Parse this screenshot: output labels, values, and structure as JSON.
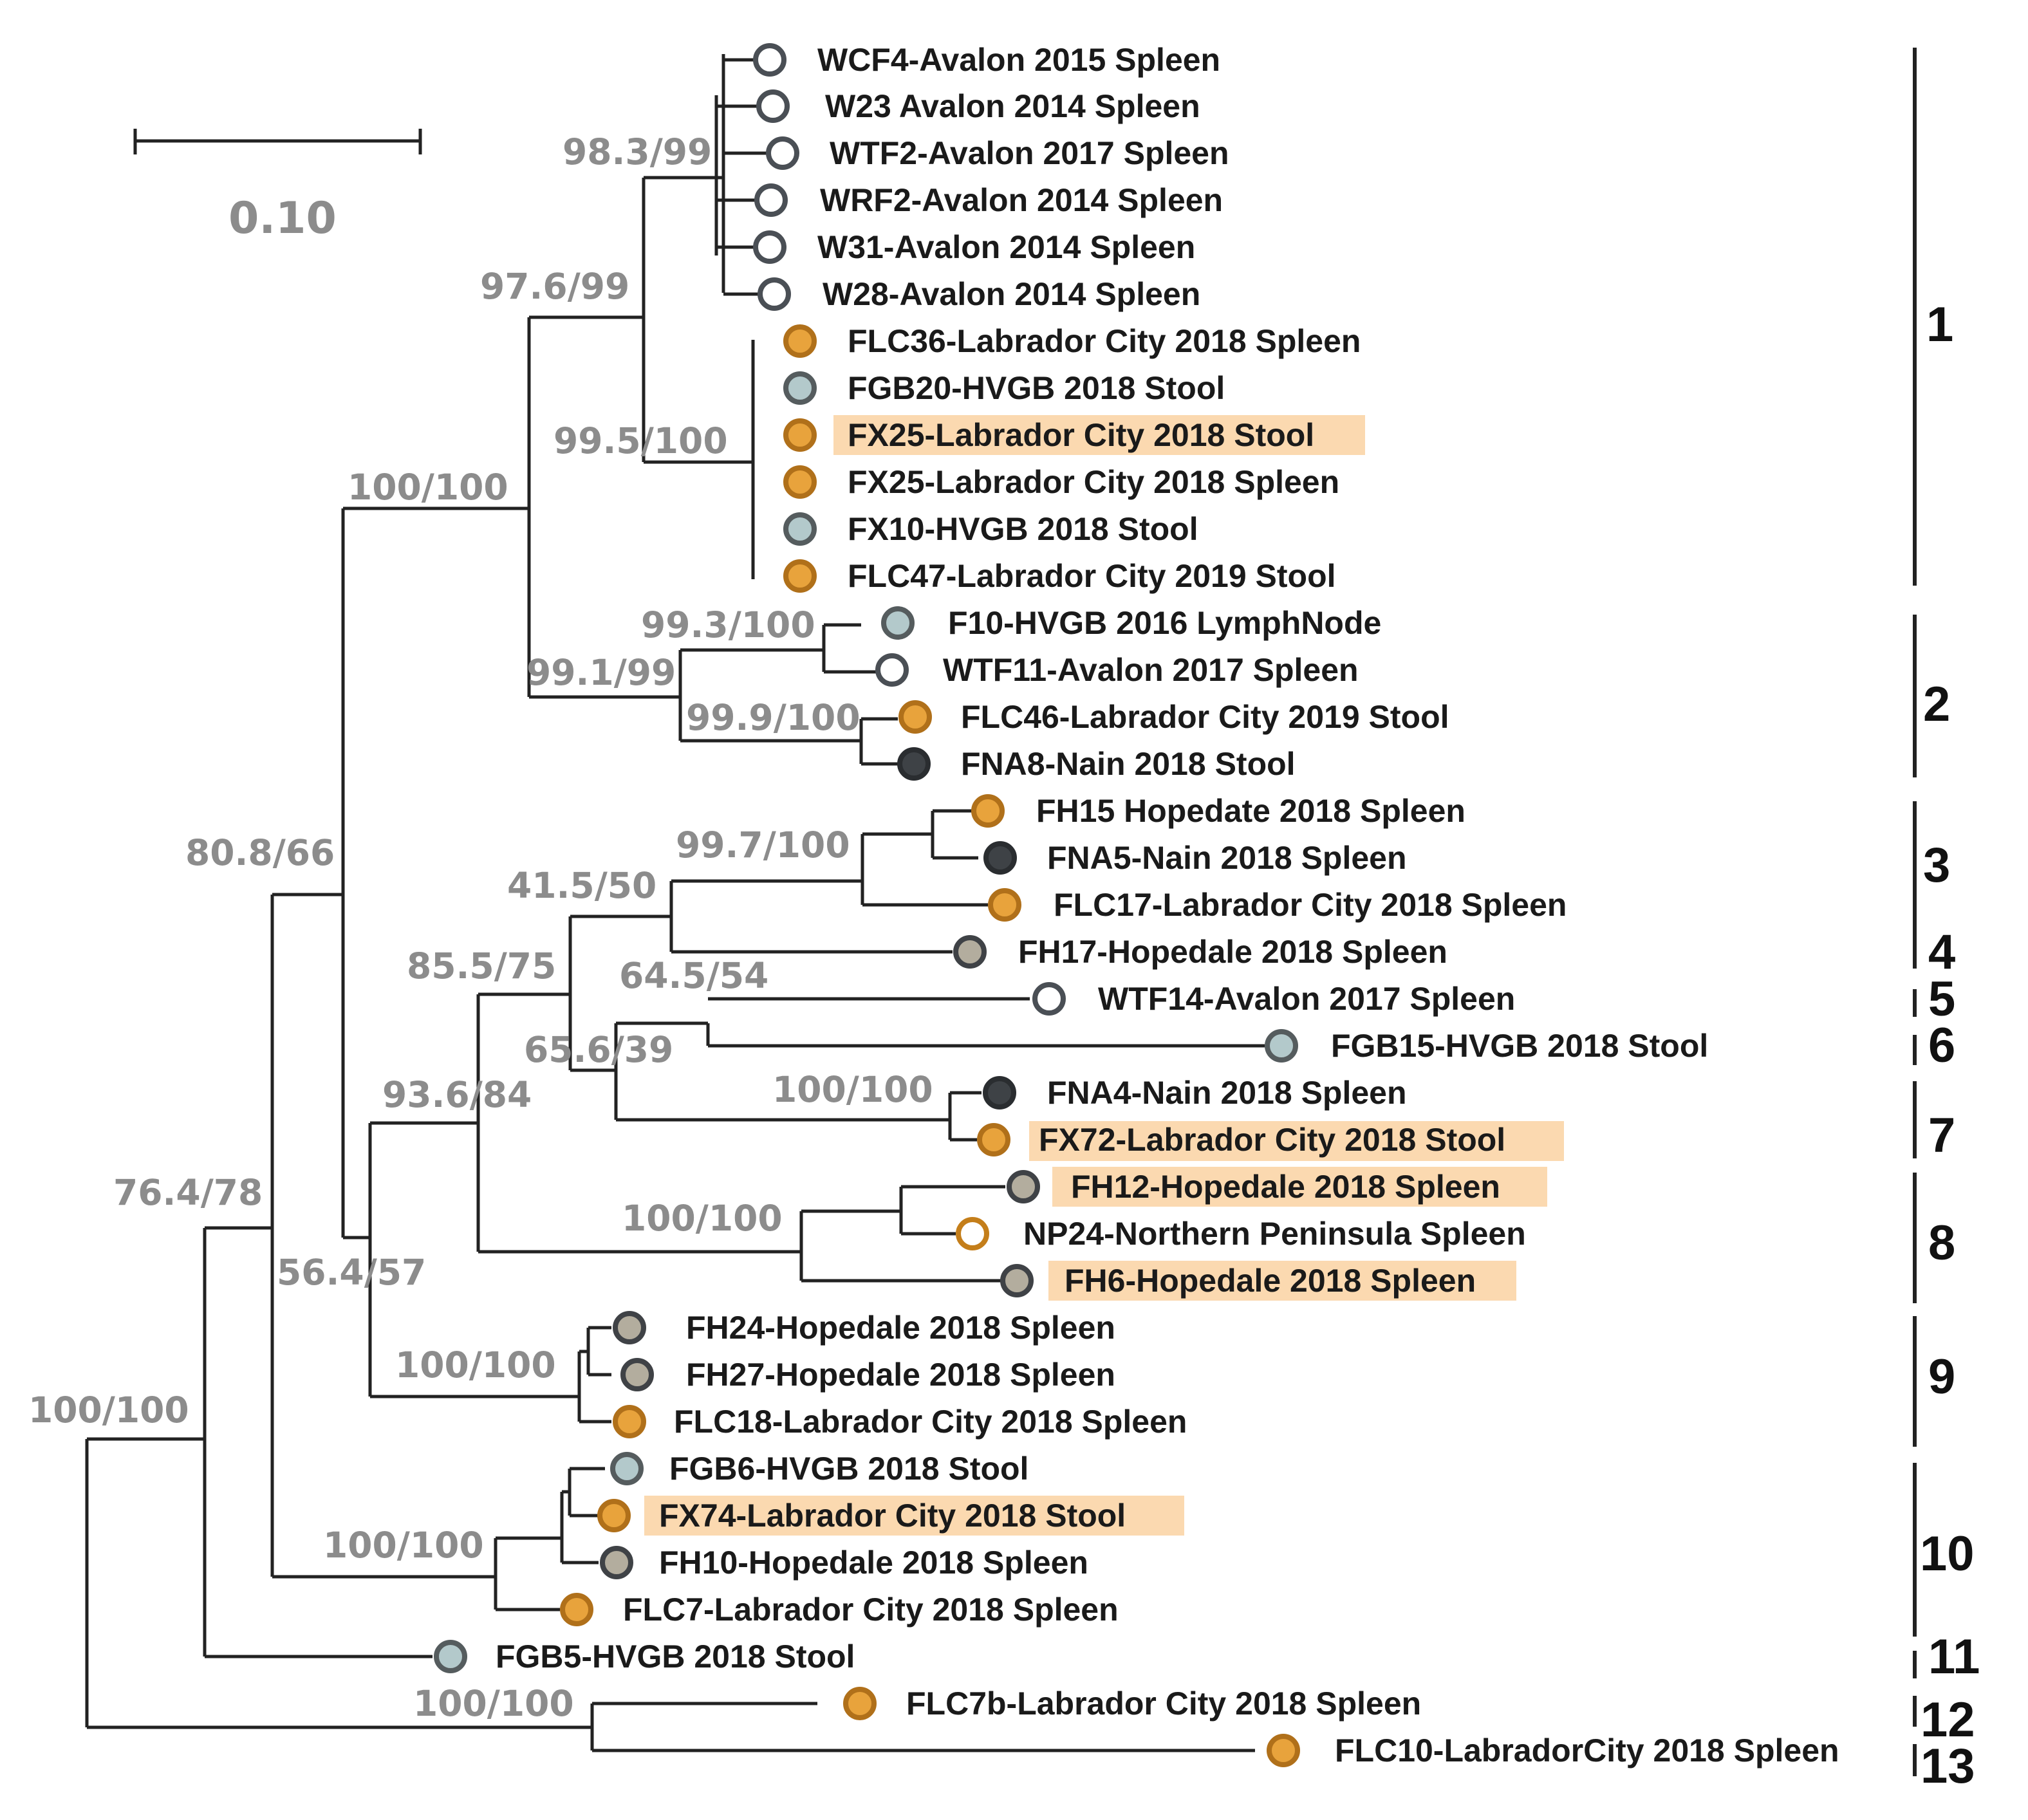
{
  "colors": {
    "avalon": {
      "fill": "#ffffff",
      "stroke": "#4a4f55"
    },
    "labrador_city": {
      "fill": "#e8a33c",
      "stroke": "#b0701a"
    },
    "hvgb": {
      "fill": "#b3c9cb",
      "stroke": "#555c5e"
    },
    "nain": {
      "fill": "#3e4246",
      "stroke": "#2a2d30"
    },
    "hopedale": {
      "fill": "#b3ad9e",
      "stroke": "#3f4246"
    },
    "northern_peninsula": {
      "fill": "#ffffff",
      "stroke": "#c47e1a"
    },
    "highlight": "#fbd9b0",
    "support_text": "#8c8c8c"
  },
  "scale_bar": {
    "label": "0.10",
    "value": 0.1
  },
  "taxa": [
    {
      "label": "WCF4-Avalon 2015 Spleen",
      "marker": "avalon"
    },
    {
      "label": "W23 Avalon 2014 Spleen",
      "marker": "avalon"
    },
    {
      "label": "WTF2-Avalon 2017 Spleen",
      "marker": "avalon"
    },
    {
      "label": "WRF2-Avalon 2014 Spleen",
      "marker": "avalon"
    },
    {
      "label": "W31-Avalon 2014 Spleen",
      "marker": "avalon"
    },
    {
      "label": "W28-Avalon 2014 Spleen",
      "marker": "avalon"
    },
    {
      "label": "FLC36-Labrador City 2018 Spleen",
      "marker": "labrador_city"
    },
    {
      "label": "FGB20-HVGB 2018 Stool",
      "marker": "hvgb"
    },
    {
      "label": "FX25-Labrador City 2018 Stool",
      "marker": "labrador_city",
      "highlight": true
    },
    {
      "label": "FX25-Labrador City 2018 Spleen",
      "marker": "labrador_city"
    },
    {
      "label": "FX10-HVGB 2018 Stool",
      "marker": "hvgb"
    },
    {
      "label": "FLC47-Labrador City 2019 Stool",
      "marker": "labrador_city"
    },
    {
      "label": "F10-HVGB 2016 LymphNode",
      "marker": "hvgb"
    },
    {
      "label": "WTF11-Avalon 2017 Spleen",
      "marker": "avalon"
    },
    {
      "label": "FLC46-Labrador City 2019 Stool",
      "marker": "labrador_city"
    },
    {
      "label": "FNA8-Nain 2018 Stool",
      "marker": "nain"
    },
    {
      "label": "FH15 Hopedate 2018 Spleen",
      "marker": "labrador_city"
    },
    {
      "label": "FNA5-Nain 2018 Spleen",
      "marker": "nain"
    },
    {
      "label": "FLC17-Labrador City 2018 Spleen",
      "marker": "labrador_city"
    },
    {
      "label": "FH17-Hopedale 2018 Spleen",
      "marker": "hopedale"
    },
    {
      "label": "WTF14-Avalon 2017 Spleen",
      "marker": "avalon"
    },
    {
      "label": "FGB15-HVGB 2018 Stool",
      "marker": "hvgb"
    },
    {
      "label": "FNA4-Nain 2018 Spleen",
      "marker": "nain"
    },
    {
      "label": "FX72-Labrador City 2018 Stool",
      "marker": "labrador_city",
      "highlight": true
    },
    {
      "label": "FH12-Hopedale 2018 Spleen",
      "marker": "hopedale",
      "highlight": true
    },
    {
      "label": "NP24-Northern Peninsula Spleen",
      "marker": "northern_peninsula"
    },
    {
      "label": "FH6-Hopedale 2018 Spleen",
      "marker": "hopedale",
      "highlight": true
    },
    {
      "label": "FH24-Hopedale 2018 Spleen",
      "marker": "hopedale"
    },
    {
      "label": "FH27-Hopedale 2018 Spleen",
      "marker": "hopedale"
    },
    {
      "label": "FLC18-Labrador City 2018 Spleen",
      "marker": "labrador_city"
    },
    {
      "label": "FGB6-HVGB 2018 Stool",
      "marker": "hvgb"
    },
    {
      "label": "FX74-Labrador City 2018 Stool",
      "marker": "labrador_city",
      "highlight": true
    },
    {
      "label": "FH10-Hopedale 2018 Spleen",
      "marker": "hopedale"
    },
    {
      "label": "FLC7-Labrador City 2018 Spleen",
      "marker": "labrador_city"
    },
    {
      "label": "FGB5-HVGB 2018 Stool",
      "marker": "hvgb"
    },
    {
      "label": "FLC7b-Labrador City 2018 Spleen",
      "marker": "labrador_city"
    },
    {
      "label": "FLC10-LabradorCity 2018 Spleen",
      "marker": "labrador_city"
    }
  ],
  "support_values": [
    "98.3/99",
    "97.6/99",
    "99.5/100",
    "100/100",
    "99.3/100",
    "99.1/99",
    "99.9/100",
    "80.8/66",
    "41.5/50",
    "99.7/100",
    "85.5/75",
    "64.5/54",
    "65.6/39",
    "100/100",
    "93.6/84",
    "100/100",
    "76.4/78",
    "56.4/57",
    "100/100",
    "100/100",
    "100/100",
    "100/100"
  ],
  "clades": [
    "1",
    "2",
    "3",
    "4",
    "5",
    "6",
    "7",
    "8",
    "9",
    "10",
    "11",
    "12",
    "13"
  ]
}
